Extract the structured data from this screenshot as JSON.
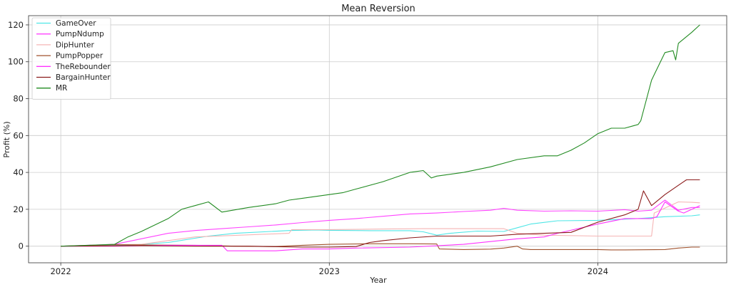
{
  "chart_data": {
    "type": "line",
    "title": "Mean Reversion",
    "xlabel": "Year",
    "ylabel": "Profit (%)",
    "xlim": [
      2021.88,
      2024.48
    ],
    "ylim": [
      -9,
      125
    ],
    "xticks": [
      {
        "value": 2022.0,
        "label": "2022"
      },
      {
        "value": 2023.0,
        "label": "2023"
      },
      {
        "value": 2024.0,
        "label": "2024"
      }
    ],
    "yticks": [
      0,
      20,
      40,
      60,
      80,
      100,
      120
    ],
    "grid": true,
    "legend_position": "top-left",
    "series": [
      {
        "name": "GameOver",
        "color": "#4ee6e6",
        "x": [
          2022.0,
          2022.1,
          2022.25,
          2022.4,
          2022.55,
          2022.65,
          2022.85,
          2022.95,
          2023.0,
          2023.15,
          2023.3,
          2023.35,
          2023.4,
          2023.45,
          2023.55,
          2023.65,
          2023.7,
          2023.75,
          2023.85,
          2024.0,
          2024.15,
          2024.25,
          2024.35,
          2024.38
        ],
        "y": [
          0,
          0.2,
          0.5,
          2,
          5.5,
          7,
          8.5,
          8.8,
          8.6,
          8.4,
          8.4,
          7.8,
          6,
          7,
          8.2,
          8,
          10,
          12,
          13.8,
          14,
          15,
          16,
          16.5,
          17
        ]
      },
      {
        "name": "PumpNdump",
        "color": "#ff44ff",
        "x": [
          2022.0,
          2022.1,
          2022.2,
          2022.3,
          2022.4,
          2022.5,
          2022.6,
          2022.7,
          2022.8,
          2022.9,
          2023.0,
          2023.1,
          2023.2,
          2023.3,
          2023.4,
          2023.5,
          2023.6,
          2023.65,
          2023.7,
          2023.8,
          2023.9,
          2024.0,
          2024.1,
          2024.15,
          2024.2,
          2024.25,
          2024.3,
          2024.35,
          2024.38
        ],
        "y": [
          0,
          0.5,
          1,
          4,
          7,
          8.5,
          9.5,
          10.5,
          11.5,
          12.8,
          14,
          15,
          16.2,
          17.5,
          18,
          18.8,
          19.5,
          20.5,
          19.5,
          19,
          19.2,
          19,
          19.8,
          19,
          19.5,
          25,
          19.5,
          21,
          21
        ]
      },
      {
        "name": "DipHunter",
        "color": "#f5b5b5",
        "x": [
          2022.0,
          2022.2,
          2022.3,
          2022.5,
          2022.85,
          2022.86,
          2023.0,
          2023.2,
          2023.35,
          2023.45,
          2023.55,
          2023.65,
          2023.7,
          2023.8,
          2024.0,
          2024.1,
          2024.2,
          2024.21,
          2024.3,
          2024.35,
          2024.38
        ],
        "y": [
          0,
          0.8,
          1,
          5,
          7,
          9,
          9,
          9.3,
          9.5,
          9.5,
          9.5,
          9.5,
          7,
          6,
          5.5,
          5.5,
          5.5,
          18,
          24,
          23.8,
          23.5
        ]
      },
      {
        "name": "PumpPopper",
        "color": "#a0522d",
        "x": [
          2022.0,
          2022.2,
          2022.35,
          2022.5,
          2022.65,
          2022.8,
          2022.9,
          2023.0,
          2023.15,
          2023.3,
          2023.4,
          2023.41,
          2023.5,
          2023.6,
          2023.65,
          2023.7,
          2023.72,
          2023.75,
          2024.0,
          2024.05,
          2024.1,
          2024.25,
          2024.3,
          2024.35,
          2024.38
        ],
        "y": [
          0,
          0.8,
          0.6,
          0.5,
          0,
          -0.2,
          0.5,
          1,
          1.3,
          1.3,
          1.2,
          -1.5,
          -1.8,
          -1.6,
          -1,
          0,
          -1.5,
          -1.8,
          -1.8,
          -2,
          -2,
          -1.8,
          -1,
          -0.5,
          -0.5
        ]
      },
      {
        "name": "TheRebounder",
        "color": "#ff33ff",
        "x": [
          2022.0,
          2022.2,
          2022.4,
          2022.6,
          2022.62,
          2022.8,
          2022.9,
          2023.0,
          2023.1,
          2023.3,
          2023.5,
          2023.7,
          2023.8,
          2023.85,
          2024.0,
          2024.1,
          2024.2,
          2024.22,
          2024.25,
          2024.3,
          2024.32,
          2024.35,
          2024.38
        ],
        "y": [
          0,
          0,
          0.5,
          0.5,
          -2.5,
          -2.5,
          -1.5,
          -1.5,
          -1,
          -0.5,
          1,
          4,
          5,
          7,
          12,
          15,
          15,
          16,
          24,
          19,
          18,
          20,
          22
        ]
      },
      {
        "name": "BargainHunter",
        "color": "#8b1a1a",
        "x": [
          2022.0,
          2022.3,
          2022.5,
          2022.7,
          2022.9,
          2023.0,
          2023.1,
          2023.15,
          2023.2,
          2023.3,
          2023.4,
          2023.6,
          2023.7,
          2023.8,
          2023.9,
          2024.0,
          2024.1,
          2024.15,
          2024.17,
          2024.2,
          2024.25,
          2024.3,
          2024.33,
          2024.38
        ],
        "y": [
          0,
          0.3,
          0,
          0,
          -0.5,
          -0.5,
          -0.2,
          2,
          3,
          4.5,
          5.5,
          5.5,
          6.5,
          7,
          7.5,
          13,
          17,
          20,
          30,
          22,
          28,
          33,
          36,
          36
        ]
      },
      {
        "name": "MR",
        "color": "#228b22",
        "x": [
          2022.0,
          2022.1,
          2022.2,
          2022.25,
          2022.3,
          2022.4,
          2022.45,
          2022.5,
          2022.55,
          2022.6,
          2022.7,
          2022.8,
          2022.85,
          2022.9,
          2023.0,
          2023.05,
          2023.1,
          2023.2,
          2023.3,
          2023.35,
          2023.38,
          2023.4,
          2023.5,
          2023.6,
          2023.7,
          2023.8,
          2023.85,
          2023.9,
          2023.95,
          2024.0,
          2024.05,
          2024.1,
          2024.15,
          2024.16,
          2024.2,
          2024.21,
          2024.25,
          2024.28,
          2024.29,
          2024.3,
          2024.35,
          2024.38
        ],
        "y": [
          0,
          0.5,
          1,
          5,
          8,
          15,
          20,
          22,
          24,
          18.5,
          21,
          23,
          25,
          26,
          28,
          29,
          31,
          35,
          40,
          41,
          37,
          38,
          40,
          43,
          47,
          49,
          49,
          52,
          56,
          61,
          64,
          64,
          66,
          68,
          90,
          93,
          105,
          106,
          101,
          110,
          116,
          120
        ]
      }
    ]
  }
}
